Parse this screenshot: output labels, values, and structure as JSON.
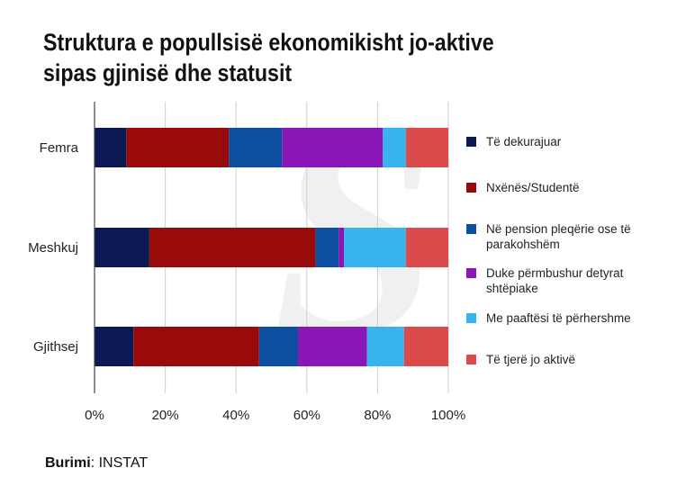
{
  "chart_data": {
    "type": "bar",
    "orientation": "horizontal",
    "stacked": true,
    "title": "Struktura e popullsisë ekonomikisht jo-aktive sipas gjinisë dhe statusit",
    "title_lines": [
      "Struktura e popullsisë ekonomikisht jo-aktive",
      "sipas gjinisë dhe statusit"
    ],
    "categories": [
      "Femra",
      "Meshkuj",
      "Gjithsej"
    ],
    "xlim": [
      0,
      100
    ],
    "xticks": [
      "0%",
      "20%",
      "40%",
      "60%",
      "80%",
      "100%"
    ],
    "legend_position": "right",
    "series": [
      {
        "name": "Të dekurajuar",
        "color": "#0b1a55",
        "values": [
          9,
          15.5,
          11
        ]
      },
      {
        "name": "Nxënës/Studentë",
        "color": "#990b0b",
        "values": [
          29,
          47,
          35.5
        ]
      },
      {
        "name": "Në pension pleqërie ose të parakohshëm",
        "color": "#0c4ea0",
        "values": [
          15,
          6.5,
          11
        ]
      },
      {
        "name": "Duke përmbushur detyrat shtëpiake",
        "color": "#8a17b5",
        "values": [
          28.5,
          1.5,
          19.5
        ]
      },
      {
        "name": "Me paaftësi të përhershme",
        "color": "#37b4ee",
        "values": [
          6.5,
          17.5,
          10.5
        ]
      },
      {
        "name": "Të tjerë jo aktivë",
        "color": "#dc4b4b",
        "values": [
          12,
          12,
          12.5
        ]
      }
    ]
  },
  "source": {
    "label": "Burimi",
    "separator": ":",
    "value": " INSTAT"
  }
}
